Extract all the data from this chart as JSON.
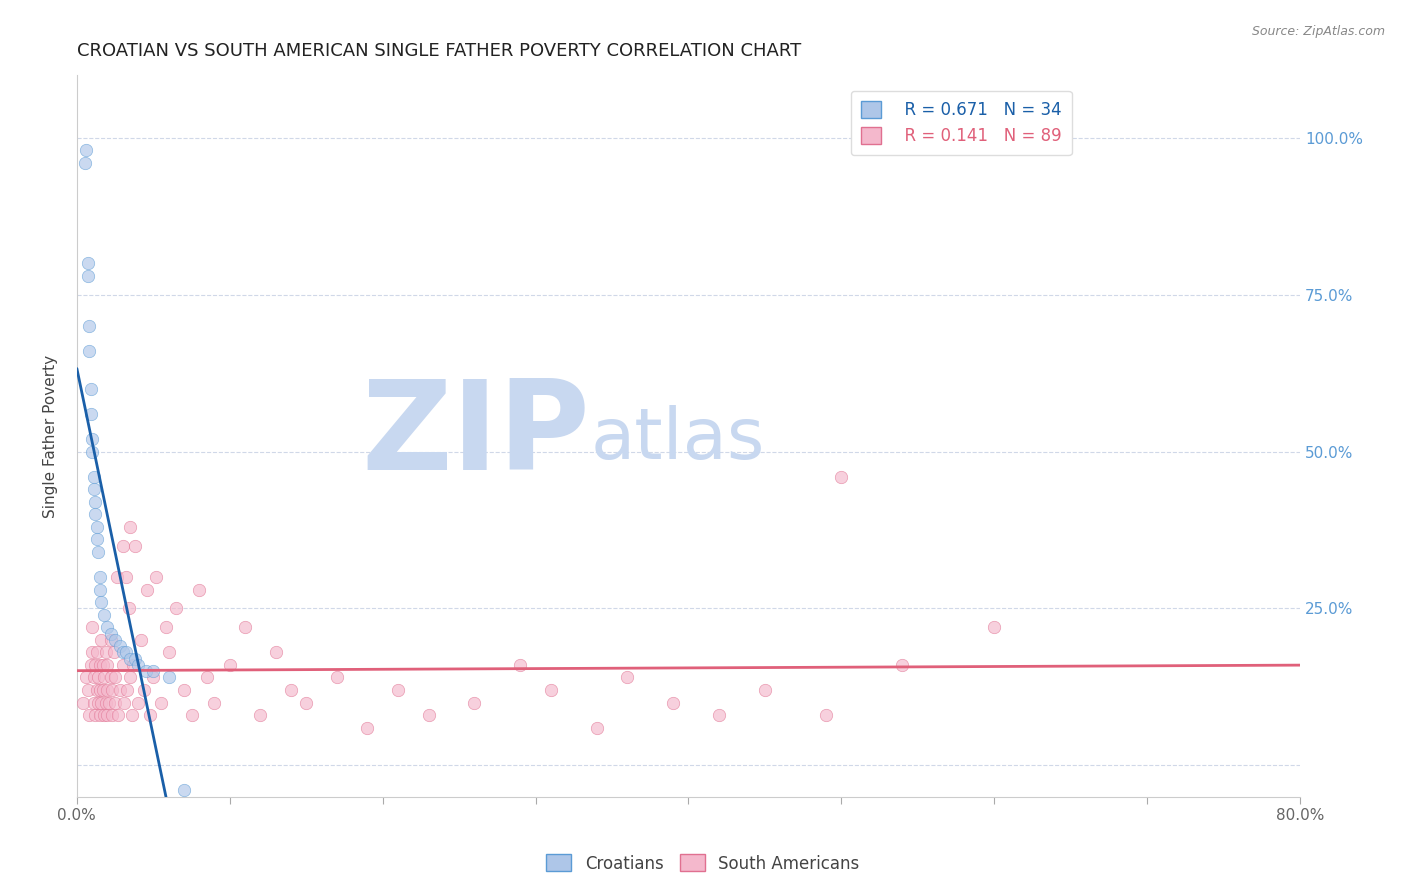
{
  "title": "CROATIAN VS SOUTH AMERICAN SINGLE FATHER POVERTY CORRELATION CHART",
  "source": "Source: ZipAtlas.com",
  "ylabel": "Single Father Poverty",
  "xlim": [
    0.0,
    0.8
  ],
  "ylim": [
    -0.05,
    1.1
  ],
  "yticks": [
    0.0,
    0.25,
    0.5,
    0.75,
    1.0
  ],
  "ytick_labels": [
    "",
    "25.0%",
    "50.0%",
    "75.0%",
    "100.0%"
  ],
  "xticks": [
    0.0,
    0.1,
    0.2,
    0.3,
    0.4,
    0.5,
    0.6,
    0.7,
    0.8
  ],
  "xtick_labels": [
    "0.0%",
    "",
    "",
    "",
    "",
    "",
    "",
    "",
    "80.0%"
  ],
  "croatian_color": "#aec6e8",
  "croatian_edge_color": "#5b9bd5",
  "south_american_color": "#f4b8cc",
  "south_american_edge_color": "#e07090",
  "trend_blue": "#1a5fa8",
  "trend_pink": "#e0607a",
  "R_croatian": 0.671,
  "N_croatian": 34,
  "R_south_american": 0.141,
  "N_south_american": 89,
  "croatian_x": [
    0.005,
    0.006,
    0.007,
    0.007,
    0.008,
    0.008,
    0.009,
    0.009,
    0.01,
    0.01,
    0.011,
    0.011,
    0.012,
    0.012,
    0.013,
    0.013,
    0.014,
    0.015,
    0.015,
    0.016,
    0.018,
    0.02,
    0.022,
    0.025,
    0.028,
    0.03,
    0.032,
    0.035,
    0.038,
    0.04,
    0.045,
    0.05,
    0.06,
    0.07
  ],
  "croatian_y": [
    0.96,
    0.98,
    0.8,
    0.78,
    0.7,
    0.66,
    0.6,
    0.56,
    0.52,
    0.5,
    0.46,
    0.44,
    0.42,
    0.4,
    0.38,
    0.36,
    0.34,
    0.3,
    0.28,
    0.26,
    0.24,
    0.22,
    0.21,
    0.2,
    0.19,
    0.18,
    0.18,
    0.17,
    0.17,
    0.16,
    0.15,
    0.15,
    0.14,
    -0.04
  ],
  "south_american_x": [
    0.004,
    0.006,
    0.007,
    0.008,
    0.009,
    0.01,
    0.01,
    0.011,
    0.011,
    0.012,
    0.012,
    0.013,
    0.013,
    0.014,
    0.014,
    0.015,
    0.015,
    0.015,
    0.016,
    0.016,
    0.017,
    0.017,
    0.018,
    0.018,
    0.019,
    0.019,
    0.02,
    0.02,
    0.02,
    0.021,
    0.022,
    0.022,
    0.023,
    0.023,
    0.024,
    0.025,
    0.025,
    0.026,
    0.027,
    0.028,
    0.03,
    0.03,
    0.031,
    0.032,
    0.033,
    0.034,
    0.035,
    0.035,
    0.036,
    0.037,
    0.038,
    0.04,
    0.042,
    0.044,
    0.046,
    0.048,
    0.05,
    0.052,
    0.055,
    0.058,
    0.06,
    0.065,
    0.07,
    0.075,
    0.08,
    0.085,
    0.09,
    0.1,
    0.11,
    0.12,
    0.13,
    0.14,
    0.15,
    0.17,
    0.19,
    0.21,
    0.23,
    0.26,
    0.29,
    0.31,
    0.34,
    0.36,
    0.39,
    0.42,
    0.45,
    0.49,
    0.5,
    0.54,
    0.6
  ],
  "south_american_y": [
    0.1,
    0.14,
    0.12,
    0.08,
    0.16,
    0.18,
    0.22,
    0.1,
    0.14,
    0.08,
    0.16,
    0.12,
    0.18,
    0.1,
    0.14,
    0.08,
    0.12,
    0.16,
    0.1,
    0.2,
    0.12,
    0.16,
    0.08,
    0.14,
    0.1,
    0.18,
    0.12,
    0.08,
    0.16,
    0.1,
    0.14,
    0.2,
    0.08,
    0.12,
    0.18,
    0.1,
    0.14,
    0.3,
    0.08,
    0.12,
    0.16,
    0.35,
    0.1,
    0.3,
    0.12,
    0.25,
    0.14,
    0.38,
    0.08,
    0.16,
    0.35,
    0.1,
    0.2,
    0.12,
    0.28,
    0.08,
    0.14,
    0.3,
    0.1,
    0.22,
    0.18,
    0.25,
    0.12,
    0.08,
    0.28,
    0.14,
    0.1,
    0.16,
    0.22,
    0.08,
    0.18,
    0.12,
    0.1,
    0.14,
    0.06,
    0.12,
    0.08,
    0.1,
    0.16,
    0.12,
    0.06,
    0.14,
    0.1,
    0.08,
    0.12,
    0.08,
    0.46,
    0.16,
    0.22
  ],
  "watermark_zip": "ZIP",
  "watermark_atlas": "atlas",
  "watermark_color": "#c8d8f0",
  "background_color": "#ffffff",
  "grid_color": "#d0d8e8",
  "title_fontsize": 13,
  "axis_label_fontsize": 11,
  "tick_fontsize": 11,
  "legend_fontsize": 12,
  "marker_size": 80,
  "marker_alpha": 0.65
}
